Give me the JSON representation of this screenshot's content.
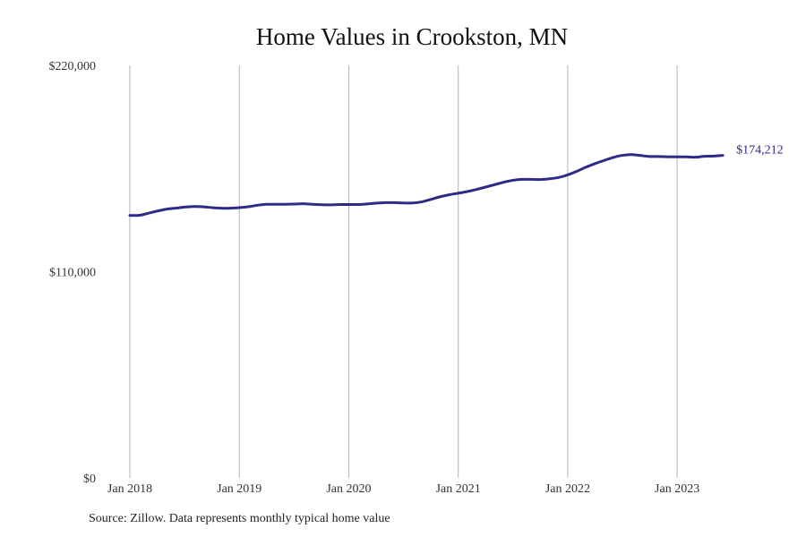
{
  "chart_data": {
    "type": "line",
    "title": "Home Values in Crookston, MN",
    "xlabel": "",
    "ylabel": "",
    "ylim": [
      0,
      220000
    ],
    "xlim": [
      "2018-01",
      "2023-11"
    ],
    "grid": {
      "vertical": true,
      "horizontal": false
    },
    "legend": "none",
    "y_ticks": [
      {
        "value": 0,
        "label": "$0"
      },
      {
        "value": 110000,
        "label": "$110,000"
      },
      {
        "value": 220000,
        "label": "$220,000"
      }
    ],
    "x_ticks": [
      {
        "date": "2018-01",
        "label": "Jan 2018"
      },
      {
        "date": "2019-01",
        "label": "Jan 2019"
      },
      {
        "date": "2020-01",
        "label": "Jan 2020"
      },
      {
        "date": "2021-01",
        "label": "Jan 2021"
      },
      {
        "date": "2022-01",
        "label": "Jan 2022"
      },
      {
        "date": "2023-01",
        "label": "Jan 2023"
      }
    ],
    "series": [
      {
        "color": "#2e2b86",
        "end_label": "$174,212",
        "points": [
          [
            "2018-01",
            140000
          ],
          [
            "2018-02",
            140000
          ],
          [
            "2018-03",
            141100
          ],
          [
            "2018-04",
            142300
          ],
          [
            "2018-05",
            143300
          ],
          [
            "2018-06",
            143800
          ],
          [
            "2018-07",
            144400
          ],
          [
            "2018-08",
            144700
          ],
          [
            "2018-09",
            144600
          ],
          [
            "2018-10",
            144100
          ],
          [
            "2018-11",
            143800
          ],
          [
            "2018-12",
            143800
          ],
          [
            "2019-01",
            144100
          ],
          [
            "2019-02",
            144600
          ],
          [
            "2019-03",
            145400
          ],
          [
            "2019-04",
            145900
          ],
          [
            "2019-05",
            145900
          ],
          [
            "2019-06",
            145900
          ],
          [
            "2019-07",
            146000
          ],
          [
            "2019-08",
            146200
          ],
          [
            "2019-09",
            145900
          ],
          [
            "2019-10",
            145700
          ],
          [
            "2019-11",
            145600
          ],
          [
            "2019-12",
            145800
          ],
          [
            "2020-01",
            145800
          ],
          [
            "2020-02",
            145800
          ],
          [
            "2020-03",
            146100
          ],
          [
            "2020-04",
            146500
          ],
          [
            "2020-05",
            146800
          ],
          [
            "2020-06",
            146800
          ],
          [
            "2020-07",
            146600
          ],
          [
            "2020-08",
            146600
          ],
          [
            "2020-09",
            147200
          ],
          [
            "2020-10",
            148500
          ],
          [
            "2020-11",
            149900
          ],
          [
            "2020-12",
            151000
          ],
          [
            "2021-01",
            151800
          ],
          [
            "2021-02",
            152700
          ],
          [
            "2021-03",
            153800
          ],
          [
            "2021-04",
            155100
          ],
          [
            "2021-05",
            156400
          ],
          [
            "2021-06",
            157700
          ],
          [
            "2021-07",
            158700
          ],
          [
            "2021-08",
            159200
          ],
          [
            "2021-09",
            159200
          ],
          [
            "2021-10",
            159100
          ],
          [
            "2021-11",
            159500
          ],
          [
            "2021-12",
            160200
          ],
          [
            "2022-01",
            161600
          ],
          [
            "2022-02",
            163500
          ],
          [
            "2022-03",
            165700
          ],
          [
            "2022-04",
            167600
          ],
          [
            "2022-05",
            169300
          ],
          [
            "2022-06",
            170900
          ],
          [
            "2022-07",
            172000
          ],
          [
            "2022-08",
            172400
          ],
          [
            "2022-09",
            171900
          ],
          [
            "2022-10",
            171400
          ],
          [
            "2022-11",
            171400
          ],
          [
            "2022-12",
            171200
          ],
          [
            "2023-01",
            171200
          ],
          [
            "2023-02",
            171200
          ],
          [
            "2023-03",
            171000
          ],
          [
            "2023-04",
            171500
          ],
          [
            "2023-05",
            171600
          ],
          [
            "2023-06",
            172000
          ]
        ]
      }
    ],
    "source_note": "Source: Zillow. Data represents monthly typical home value"
  }
}
